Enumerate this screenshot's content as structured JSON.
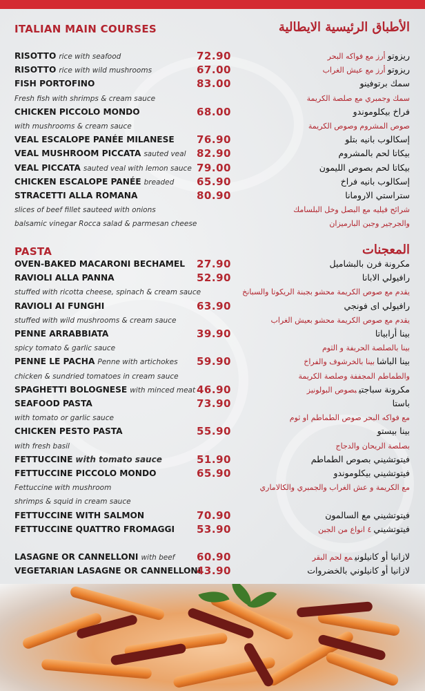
{
  "colors": {
    "accent": "#b3262f",
    "top_bar": "#d42a31",
    "background": "#e8eaec"
  },
  "main_courses": {
    "title_en": "ITALIAN MAIN COURSES",
    "title_ar": "الأطباق الرئيسية الايطالية",
    "lines": [
      {
        "name": "RISOTTO",
        "desc": "rice with seafood",
        "price": "72.90",
        "ar_name": "ريزوتو",
        "ar_desc": "أرز مع فواكه البحر"
      },
      {
        "name": "RISOTTO",
        "desc": "rice with wild mushrooms",
        "price": "67.00",
        "ar_name": "ريزوتو",
        "ar_desc": "أرز مع عيش الغراب"
      },
      {
        "name": "FISH PORTOFINO",
        "price": "83.00",
        "ar_name": "سمك برتوفينو"
      },
      {
        "desc": "Fresh fish with shrimps & cream sauce",
        "ar_desc": "سمك وجمبري مع صلصة الكريمة"
      },
      {
        "name": "CHICKEN PICCOLO MONDO",
        "price": "68.00",
        "ar_name": "فراخ بيكلوموندو"
      },
      {
        "desc": "with mushrooms & cream sauce",
        "ar_desc": "صوص المشروم وصوص الكريمة"
      },
      {
        "name": "VEAL ESCALOPE PANÉE MILANESE",
        "price": "76.90",
        "ar_name": "إسكالوب بانيه بتلو"
      },
      {
        "name": "VEAL MUSHROOM PICCATA",
        "desc": "sauted veal",
        "price": "82.90",
        "ar_name": "بيكاتا لحم بالمشروم"
      },
      {
        "name": "VEAL PICCATA",
        "desc": "sauted veal with lemon sauce",
        "price": "79.00",
        "ar_name": "بيكاتا لحم بصوص الليمون"
      },
      {
        "name": "CHICKEN ESCALOPE PANÉE",
        "desc": "breaded",
        "price": "65.90",
        "ar_name": "إسكالوب بانيه فراخ"
      },
      {
        "name": "STRACETTI ALLA ROMANA",
        "price": "80.90",
        "ar_name": "ستراستي الارومانا"
      },
      {
        "desc": "slices of beef fillet sauteed with onions",
        "ar_desc": "شرائح فيليه مع البصل وخل البلسامك"
      },
      {
        "desc": "balsamic vinegar Rocca salad & parmesan cheese",
        "ar_desc": "والجرجير وجبن البارميزان"
      }
    ]
  },
  "pasta": {
    "title_en": "PASTA",
    "title_ar": "المعجنات",
    "lines": [
      {
        "name": "OVEN-BAKED MACARONI BECHAMEL",
        "price": "27.90",
        "ar_name": "مكرونة فرن بالبشاميل"
      },
      {
        "name": "RAVIOLI ALLA PANNA",
        "price": "52.90",
        "ar_name": "رافيولي الابانا"
      },
      {
        "desc": "stuffed with ricotta cheese, spinach & cream sauce",
        "ar_desc": "يقدم مع صوص الكريمة محشو بجبنة الريكوتا والسبانخ"
      },
      {
        "name": "RAVIOLI AI FUNGHI",
        "price": "63.90",
        "ar_name": "رافيولي اى فونجي"
      },
      {
        "desc": "stuffed with wild mushrooms & cream sauce",
        "ar_desc": "يقدم مع صوص الكريمة محشو بعيش الغراب"
      },
      {
        "name": "PENNE ARRABBIATA",
        "price": "39.90",
        "ar_name": "بينا أرابياتا"
      },
      {
        "desc": "spicy tomato & garlic sauce",
        "ar_desc": "بينا بالصلصة الحريفة و الثوم"
      },
      {
        "name": "PENNE LE PACHA",
        "desc": "Penne with artichokes",
        "price": "59.90",
        "ar_name": "بينا الباشا",
        "ar_desc": "بينا بالخرشوف والفراخ"
      },
      {
        "desc": "chicken & sundried tomatoes in cream sauce",
        "ar_desc": "والطماطم المجففة وصلصة الكريمة"
      },
      {
        "name": "SPAGHETTI BOLOGNESE",
        "desc": "with minced meat",
        "price": "46.90",
        "ar_name": "مكرونة سباجتي",
        "ar_desc": "بصوص البولونيز"
      },
      {
        "name": "SEAFOOD PASTA",
        "price": "73.90",
        "ar_name": "باستا"
      },
      {
        "desc": "with tomato or garlic sauce",
        "ar_desc": "مع فواكه البحر صوص الطماطم او ثوم"
      },
      {
        "name": "CHICKEN PESTO PASTA",
        "price": "55.90",
        "ar_name": "بينا بيستو"
      },
      {
        "desc": "with fresh basil",
        "ar_desc": "بصلصة الريحان والدجاج"
      },
      {
        "name": "FETTUCCINE",
        "desc": "with tomato sauce",
        "desc_bold": true,
        "price": "51.90",
        "ar_name": "فيتوتشيني بصوص الطماطم"
      },
      {
        "name": "FETTUCCINE PICCOLO MONDO",
        "price": "65.90",
        "ar_name": "فيتوتشيني بيكلوموندو"
      },
      {
        "desc": "Fettuccine with mushroom",
        "ar_desc": "مع الكريمة و عش الغراب والجمبري والكالاماري"
      },
      {
        "desc": " shrimps & squid in cream sauce"
      },
      {
        "name": "FETTUCCINE WITH SALMON",
        "price": "70.90",
        "ar_name": "فيتوتشيني مع السالمون"
      },
      {
        "name": "FETTUCCINE QUATTRO FROMAGGI",
        "price": "53.90",
        "ar_name": "فيتوتشيني",
        "ar_desc": "٤ انواع من الجبن"
      }
    ]
  },
  "lasagne": {
    "lines": [
      {
        "name": "LASAGNE OR CANNELLONI",
        "desc": "with beef",
        "price": "60.90",
        "ar_name": "لازانيا أو كانيلوني",
        "ar_desc": "مع لحم البقر"
      },
      {
        "name": "VEGETARIAN LASAGNE OR CANNELLONI",
        "price": "43.90",
        "ar_name": "لازانيا أو كانيلوني بالخضروات"
      }
    ]
  }
}
